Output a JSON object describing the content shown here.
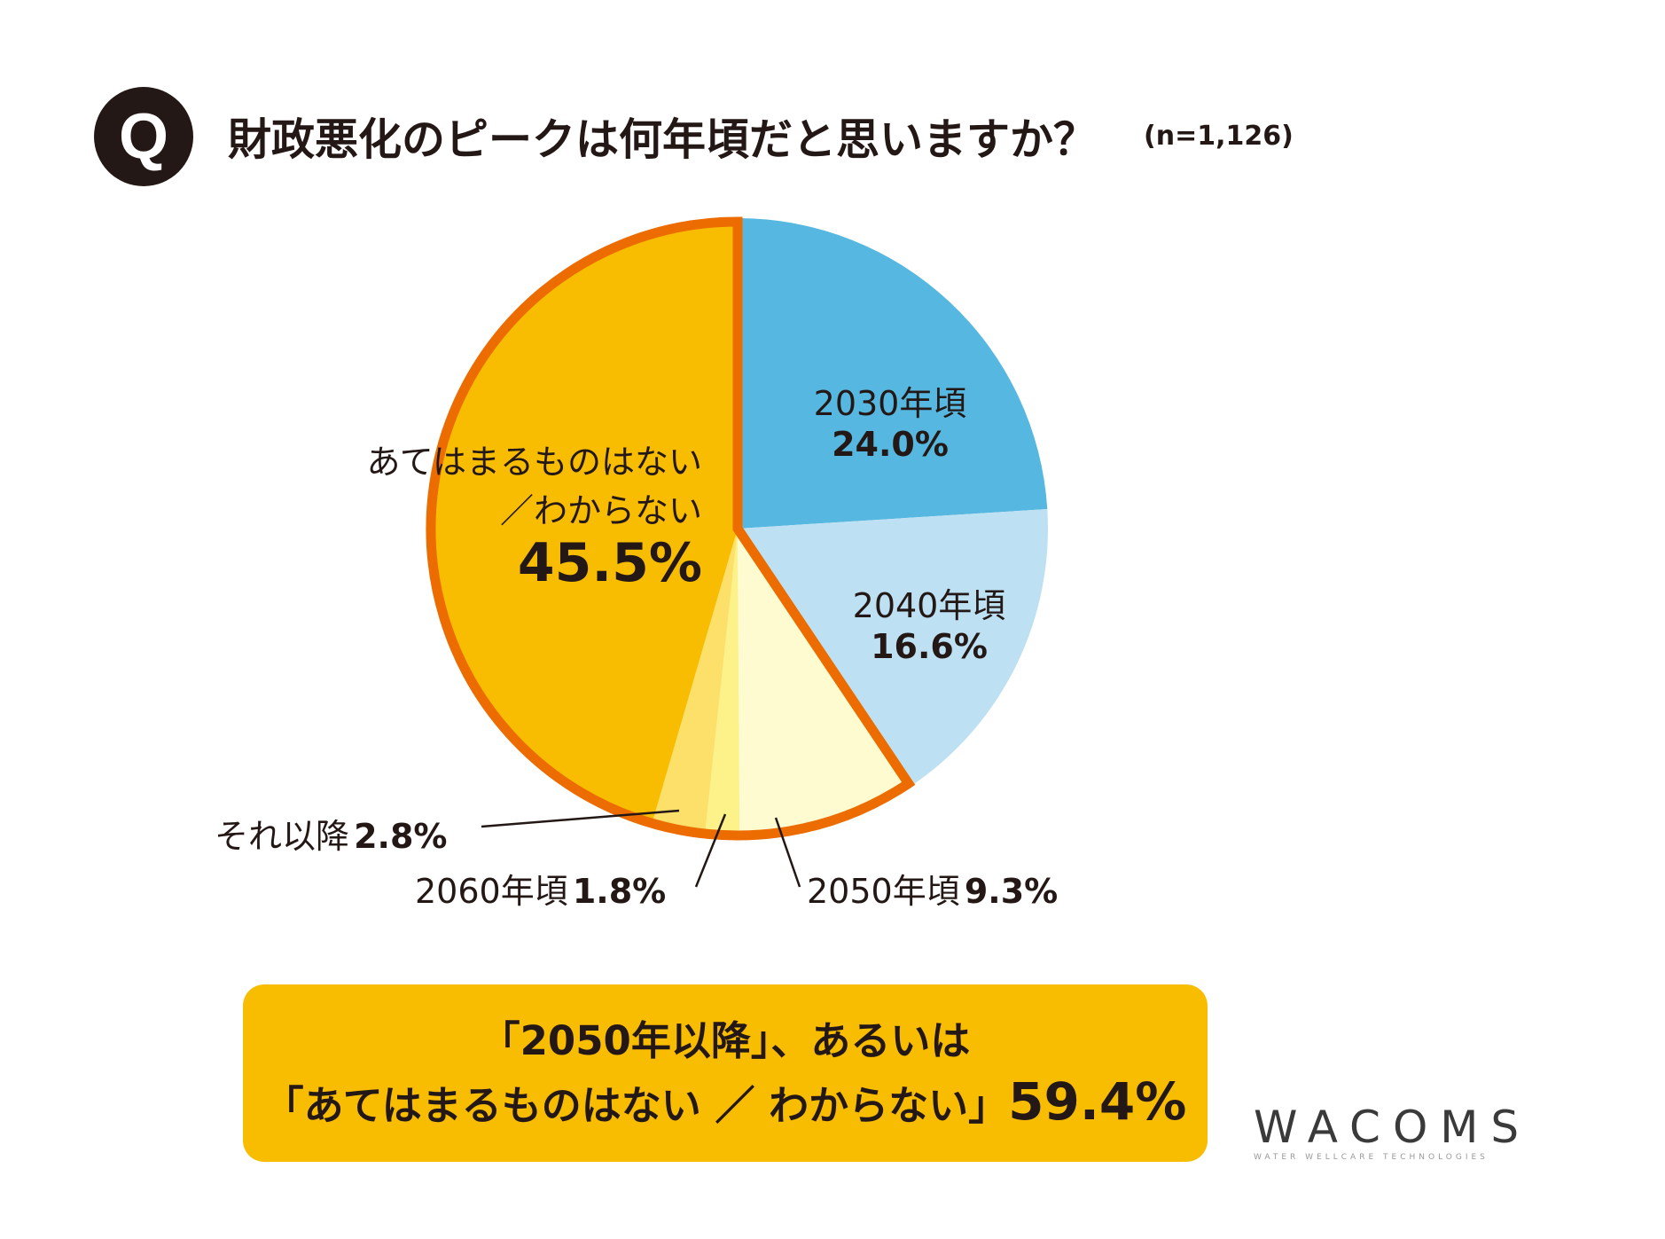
{
  "header": {
    "badge": "Q",
    "question": "財政悪化のピークは何年頃だと思いますか？",
    "sample": "(n=1,126)"
  },
  "chart_data": {
    "type": "pie",
    "start_angle_deg": 0,
    "direction": "clockwise",
    "slices": [
      {
        "label": "2030年頃",
        "value": 24.0,
        "value_label": "24.0%",
        "color": "#56b8e0"
      },
      {
        "label": "2040年頃",
        "value": 16.6,
        "value_label": "16.6%",
        "color": "#bde0f2"
      },
      {
        "label": "2050年頃",
        "value": 9.3,
        "value_label": "9.3%",
        "color": "#fffbd0"
      },
      {
        "label": "2060年頃",
        "value": 1.8,
        "value_label": "1.8%",
        "color": "#fdf28a"
      },
      {
        "label": "それ以降",
        "value": 2.8,
        "value_label": "2.8%",
        "color": "#fce06a"
      },
      {
        "label_line1": "あてはまるものはない",
        "label_line2": "／わからない",
        "value": 45.5,
        "value_label": "45.5%",
        "color": "#f8bd00"
      }
    ],
    "highlight_outline_color": "#ec6c00",
    "highlight_group": [
      "2050年頃",
      "2060年頃",
      "それ以降",
      "あてはまるものはない／わからない"
    ]
  },
  "callout": {
    "line1": "「2050年以降」、あるいは",
    "line2_text": "「あてはまるものはない ／ わからない」",
    "line2_value": "59.4%"
  },
  "logo": {
    "name": "WACOMS",
    "tagline": "WATER WELLCARE TECHNOLOGIES"
  }
}
